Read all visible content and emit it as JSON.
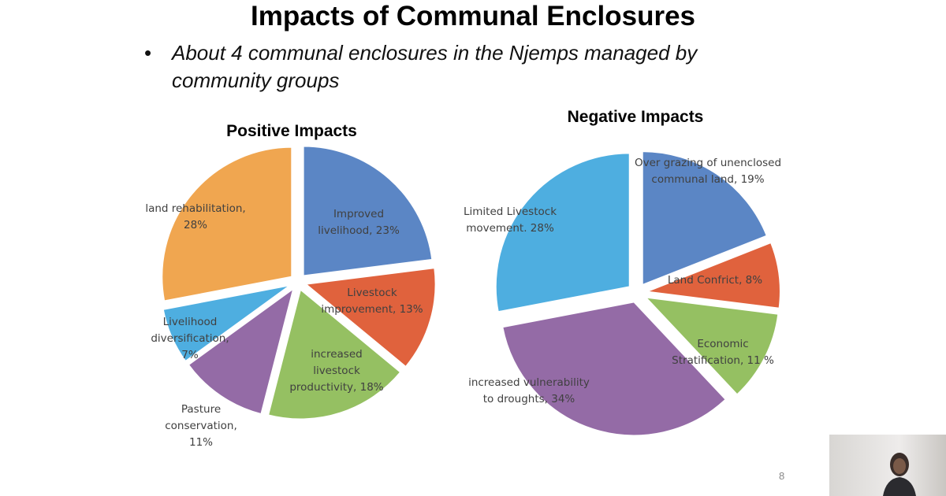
{
  "slide": {
    "title": "Impacts of Communal Enclosures",
    "bullet_symbol": "•",
    "bullet": "About 4 communal enclosures in the Njemps managed by community groups",
    "page_number": "8"
  },
  "chart_data": [
    {
      "type": "pie",
      "title": "Positive Impacts",
      "exploded": true,
      "categories": [
        "Improved livelihood",
        "Livestock improvement",
        "increased livestock productivity",
        "Pasture conservation",
        "Livelihood diversification",
        "land rehabilitation"
      ],
      "values": [
        23,
        13,
        18,
        11,
        7,
        28
      ],
      "labels": [
        "Improved livelihood, 23%",
        "Livestock improvement, 13%",
        "increased livestock productivity, 18%",
        "Pasture conservation, 11%",
        "Livelihood diversification, 7%",
        "land rehabilitation, 28%"
      ],
      "colors": [
        "#5b86c5",
        "#e0623d",
        "#95c062",
        "#946ba6",
        "#4eaee0",
        "#f0a650"
      ]
    },
    {
      "type": "pie",
      "title": "Negative Impacts",
      "exploded": true,
      "categories": [
        "Over grazing of unenclosed communal land",
        "Land Confrict",
        "Economic Stratification",
        "increased vulnerability to droughts",
        "Limited Livestock movement"
      ],
      "values": [
        19,
        8,
        11,
        34,
        28
      ],
      "labels": [
        "Over grazing of unenclosed communal land, 19%",
        "Land Confrict, 8%",
        "Economic Stratification, 11 %",
        "increased vulnerability to droughts, 34%",
        "Limited Livestock movement. 28%"
      ],
      "colors": [
        "#5b86c5",
        "#e0623d",
        "#95c062",
        "#946ba6",
        "#4eaee0"
      ]
    }
  ]
}
